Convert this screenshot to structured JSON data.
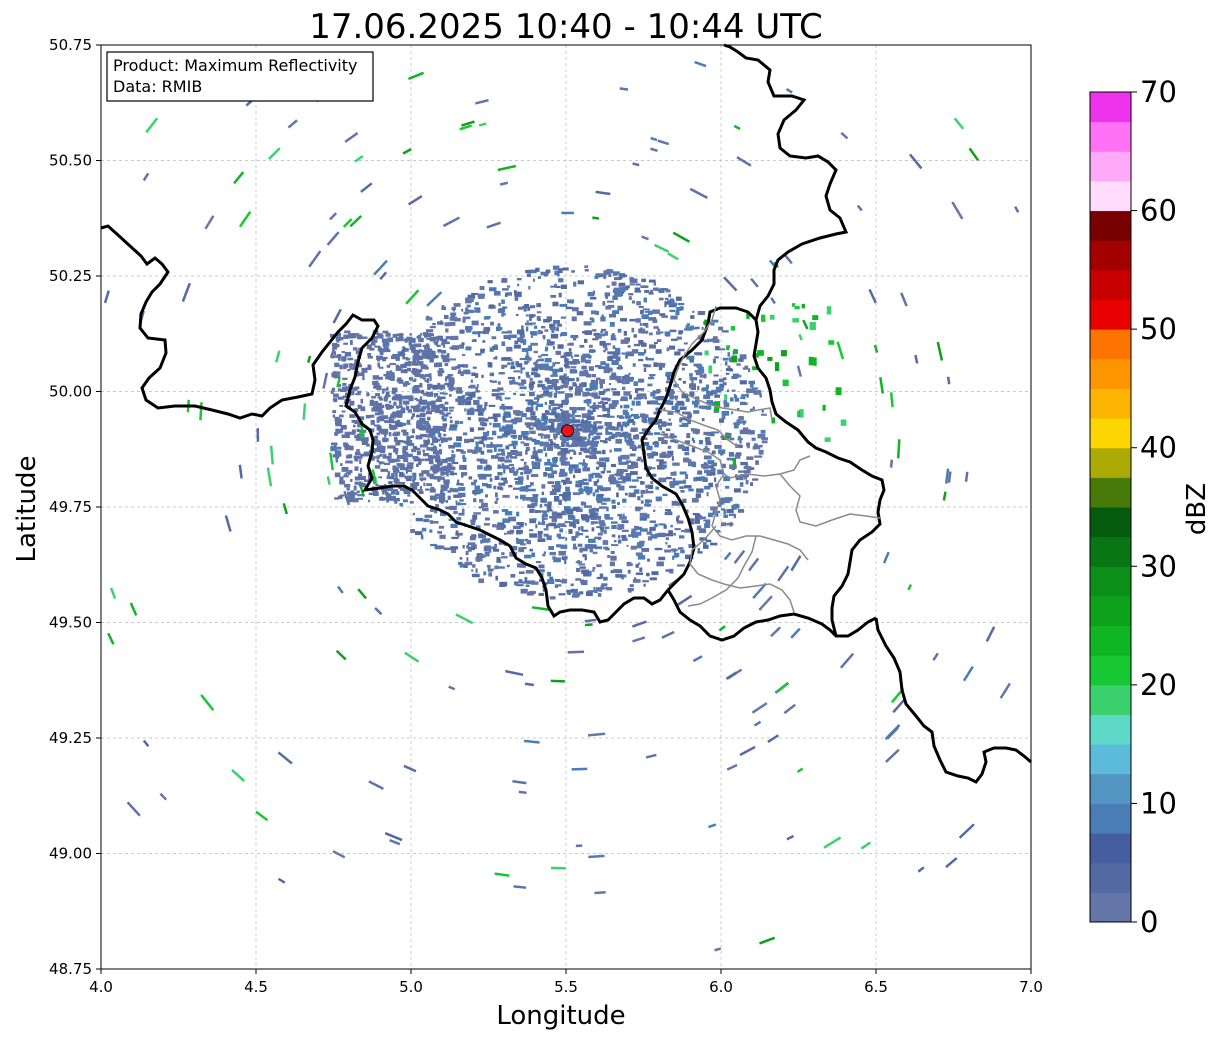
{
  "title": "17.06.2025 10:40 - 10:44 UTC",
  "info_box": {
    "line1": "Product: Maximum Reflectivity",
    "line2": "Data: RMIB"
  },
  "axes": {
    "xlabel": "Longitude",
    "ylabel": "Latitude",
    "xlim": [
      4.0,
      7.0
    ],
    "ylim": [
      48.75,
      50.75
    ],
    "x_ticks": [
      "4.0",
      "4.5",
      "5.0",
      "5.5",
      "6.0",
      "6.5",
      "7.0"
    ],
    "y_ticks": [
      "48.75",
      "49.00",
      "49.25",
      "49.50",
      "49.75",
      "50.00",
      "50.25",
      "50.50",
      "50.75"
    ],
    "grid": true
  },
  "radar_site": {
    "lon": 5.505,
    "lat": 49.915,
    "color": "#e8141c"
  },
  "colorbar": {
    "label": "dBZ",
    "range": [
      0,
      70
    ],
    "ticks": [
      "0",
      "10",
      "20",
      "30",
      "40",
      "50",
      "60",
      "70"
    ],
    "colors": [
      "#6477a8",
      "#546aa3",
      "#455e9f",
      "#4a7cb5",
      "#5294c2",
      "#5cbbd9",
      "#5fd9c8",
      "#3bd16e",
      "#18c832",
      "#0fb523",
      "#0da11c",
      "#0b8f18",
      "#097614",
      "#055c0f",
      "#477a09",
      "#acab05",
      "#fdd500",
      "#fdb400",
      "#fd9500",
      "#fd7500",
      "#e80000",
      "#c70000",
      "#a30000",
      "#780000",
      "#ffdcfc",
      "#ffaaf8",
      "#ff72f6",
      "#ef33ec"
    ]
  },
  "legend_colors": {
    "echo": "#5f73a8",
    "border": "#000000",
    "province": "#8a8a8a"
  }
}
